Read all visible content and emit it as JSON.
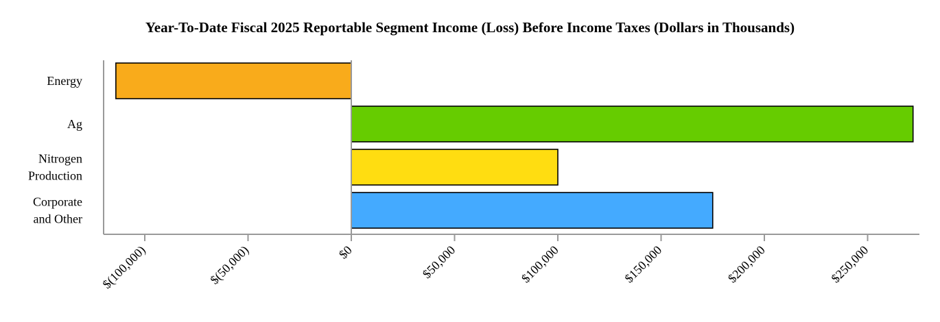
{
  "chart_data": {
    "type": "bar",
    "orientation": "horizontal",
    "title": "Year-To-Date Fiscal 2025 Reportable Segment Income (Loss) Before Income Taxes (Dollars in Thousands)",
    "xlabel": "",
    "ylabel": "",
    "categories": [
      {
        "lines": [
          "Energy"
        ]
      },
      {
        "lines": [
          "Ag"
        ]
      },
      {
        "lines": [
          "Nitrogen",
          "Production"
        ]
      },
      {
        "lines": [
          "Corporate",
          "and Other"
        ]
      }
    ],
    "values": [
      -114000,
      272000,
      100000,
      175000
    ],
    "colors": [
      "#F9AB1B",
      "#66CC00",
      "#FFDD11",
      "#44AAFF"
    ],
    "xlim": [
      -120000,
      275000
    ],
    "ticks": [
      {
        "value": -100000,
        "label": "$(100,000)"
      },
      {
        "value": -50000,
        "label": "$(50,000)"
      },
      {
        "value": 0,
        "label": "$0"
      },
      {
        "value": 50000,
        "label": "$50,000"
      },
      {
        "value": 100000,
        "label": "$100,000"
      },
      {
        "value": 150000,
        "label": "$150,000"
      },
      {
        "value": 200000,
        "label": "$200,000"
      },
      {
        "value": 250000,
        "label": "$250,000"
      }
    ],
    "grid": false,
    "legend": "none"
  }
}
